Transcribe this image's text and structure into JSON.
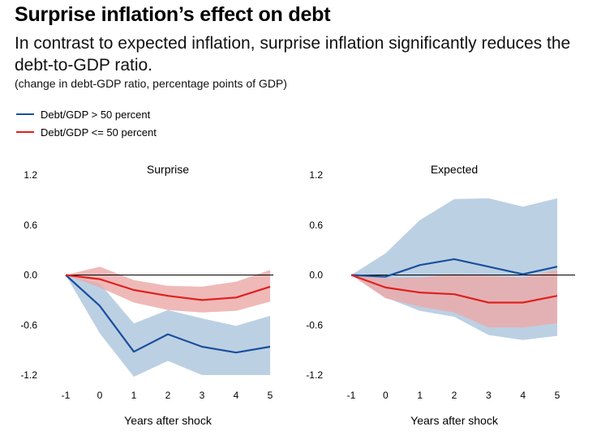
{
  "header": {
    "title": "Surprise inflation’s effect on debt",
    "subtitle": "In contrast to expected inflation, surprise inflation significantly reduces the debt-to-GDP ratio.",
    "note": "(change in debt-GDP ratio, percentage points of GDP)"
  },
  "legend": {
    "items": [
      {
        "label": "Debt/GDP > 50 percent",
        "color": "#1a4f9c"
      },
      {
        "label": "Debt/GDP <= 50 percent",
        "color": "#e02020"
      }
    ]
  },
  "colors": {
    "high_line": "#1a4f9c",
    "high_band": "#bcd0e4",
    "low_line": "#e02020",
    "low_band": "#ecaaa8",
    "overlap_band": "#c98a8e"
  },
  "chart_data": [
    {
      "type": "line",
      "title": "Surprise",
      "xlabel": "Years after shock",
      "ylabel": "",
      "x": [
        -1,
        0,
        1,
        2,
        3,
        4,
        5
      ],
      "ylim": [
        -1.2,
        1.2
      ],
      "yticks": [
        "1.2",
        "0.6",
        "0.0",
        "-0.6",
        "-1.2"
      ],
      "xticks": [
        "-1",
        "0",
        "1",
        "2",
        "3",
        "4",
        "5"
      ],
      "series": [
        {
          "name": "Debt/GDP > 50 percent",
          "values": [
            0,
            -0.37,
            -0.92,
            -0.71,
            -0.86,
            -0.93,
            -0.86
          ],
          "lower": [
            0,
            -0.7,
            -1.22,
            -1.03,
            -1.2,
            -1.2,
            -1.2
          ],
          "upper": [
            0,
            -0.1,
            -0.58,
            -0.42,
            -0.52,
            -0.61,
            -0.49
          ]
        },
        {
          "name": "Debt/GDP <= 50 percent",
          "values": [
            0,
            -0.05,
            -0.18,
            -0.25,
            -0.3,
            -0.27,
            -0.14
          ],
          "lower": [
            0,
            -0.15,
            -0.33,
            -0.42,
            -0.45,
            -0.43,
            -0.32
          ],
          "upper": [
            0,
            0.1,
            -0.06,
            -0.13,
            -0.14,
            -0.08,
            0.06
          ]
        }
      ]
    },
    {
      "type": "line",
      "title": "Expected",
      "xlabel": "Years after shock",
      "ylabel": "",
      "x": [
        -1,
        0,
        1,
        2,
        3,
        4,
        5
      ],
      "ylim": [
        -1.2,
        1.2
      ],
      "yticks": [
        "1.2",
        "0.6",
        "0.0",
        "-0.6",
        "-1.2"
      ],
      "xticks": [
        "-1",
        "0",
        "1",
        "2",
        "3",
        "4",
        "5"
      ],
      "series": [
        {
          "name": "Debt/GDP > 50 percent",
          "values": [
            0,
            -0.02,
            0.12,
            0.19,
            0.1,
            0.01,
            0.1
          ],
          "lower": [
            0,
            -0.27,
            -0.43,
            -0.5,
            -0.72,
            -0.78,
            -0.73
          ],
          "upper": [
            0,
            0.26,
            0.66,
            0.91,
            0.92,
            0.82,
            0.92
          ]
        },
        {
          "name": "Debt/GDP <= 50 percent",
          "values": [
            0,
            -0.15,
            -0.21,
            -0.23,
            -0.33,
            -0.33,
            -0.25
          ],
          "lower": [
            0,
            -0.28,
            -0.38,
            -0.45,
            -0.63,
            -0.63,
            -0.58
          ],
          "upper": [
            0,
            -0.04,
            -0.03,
            0.01,
            -0.01,
            -0.03,
            0.06
          ]
        }
      ]
    }
  ]
}
